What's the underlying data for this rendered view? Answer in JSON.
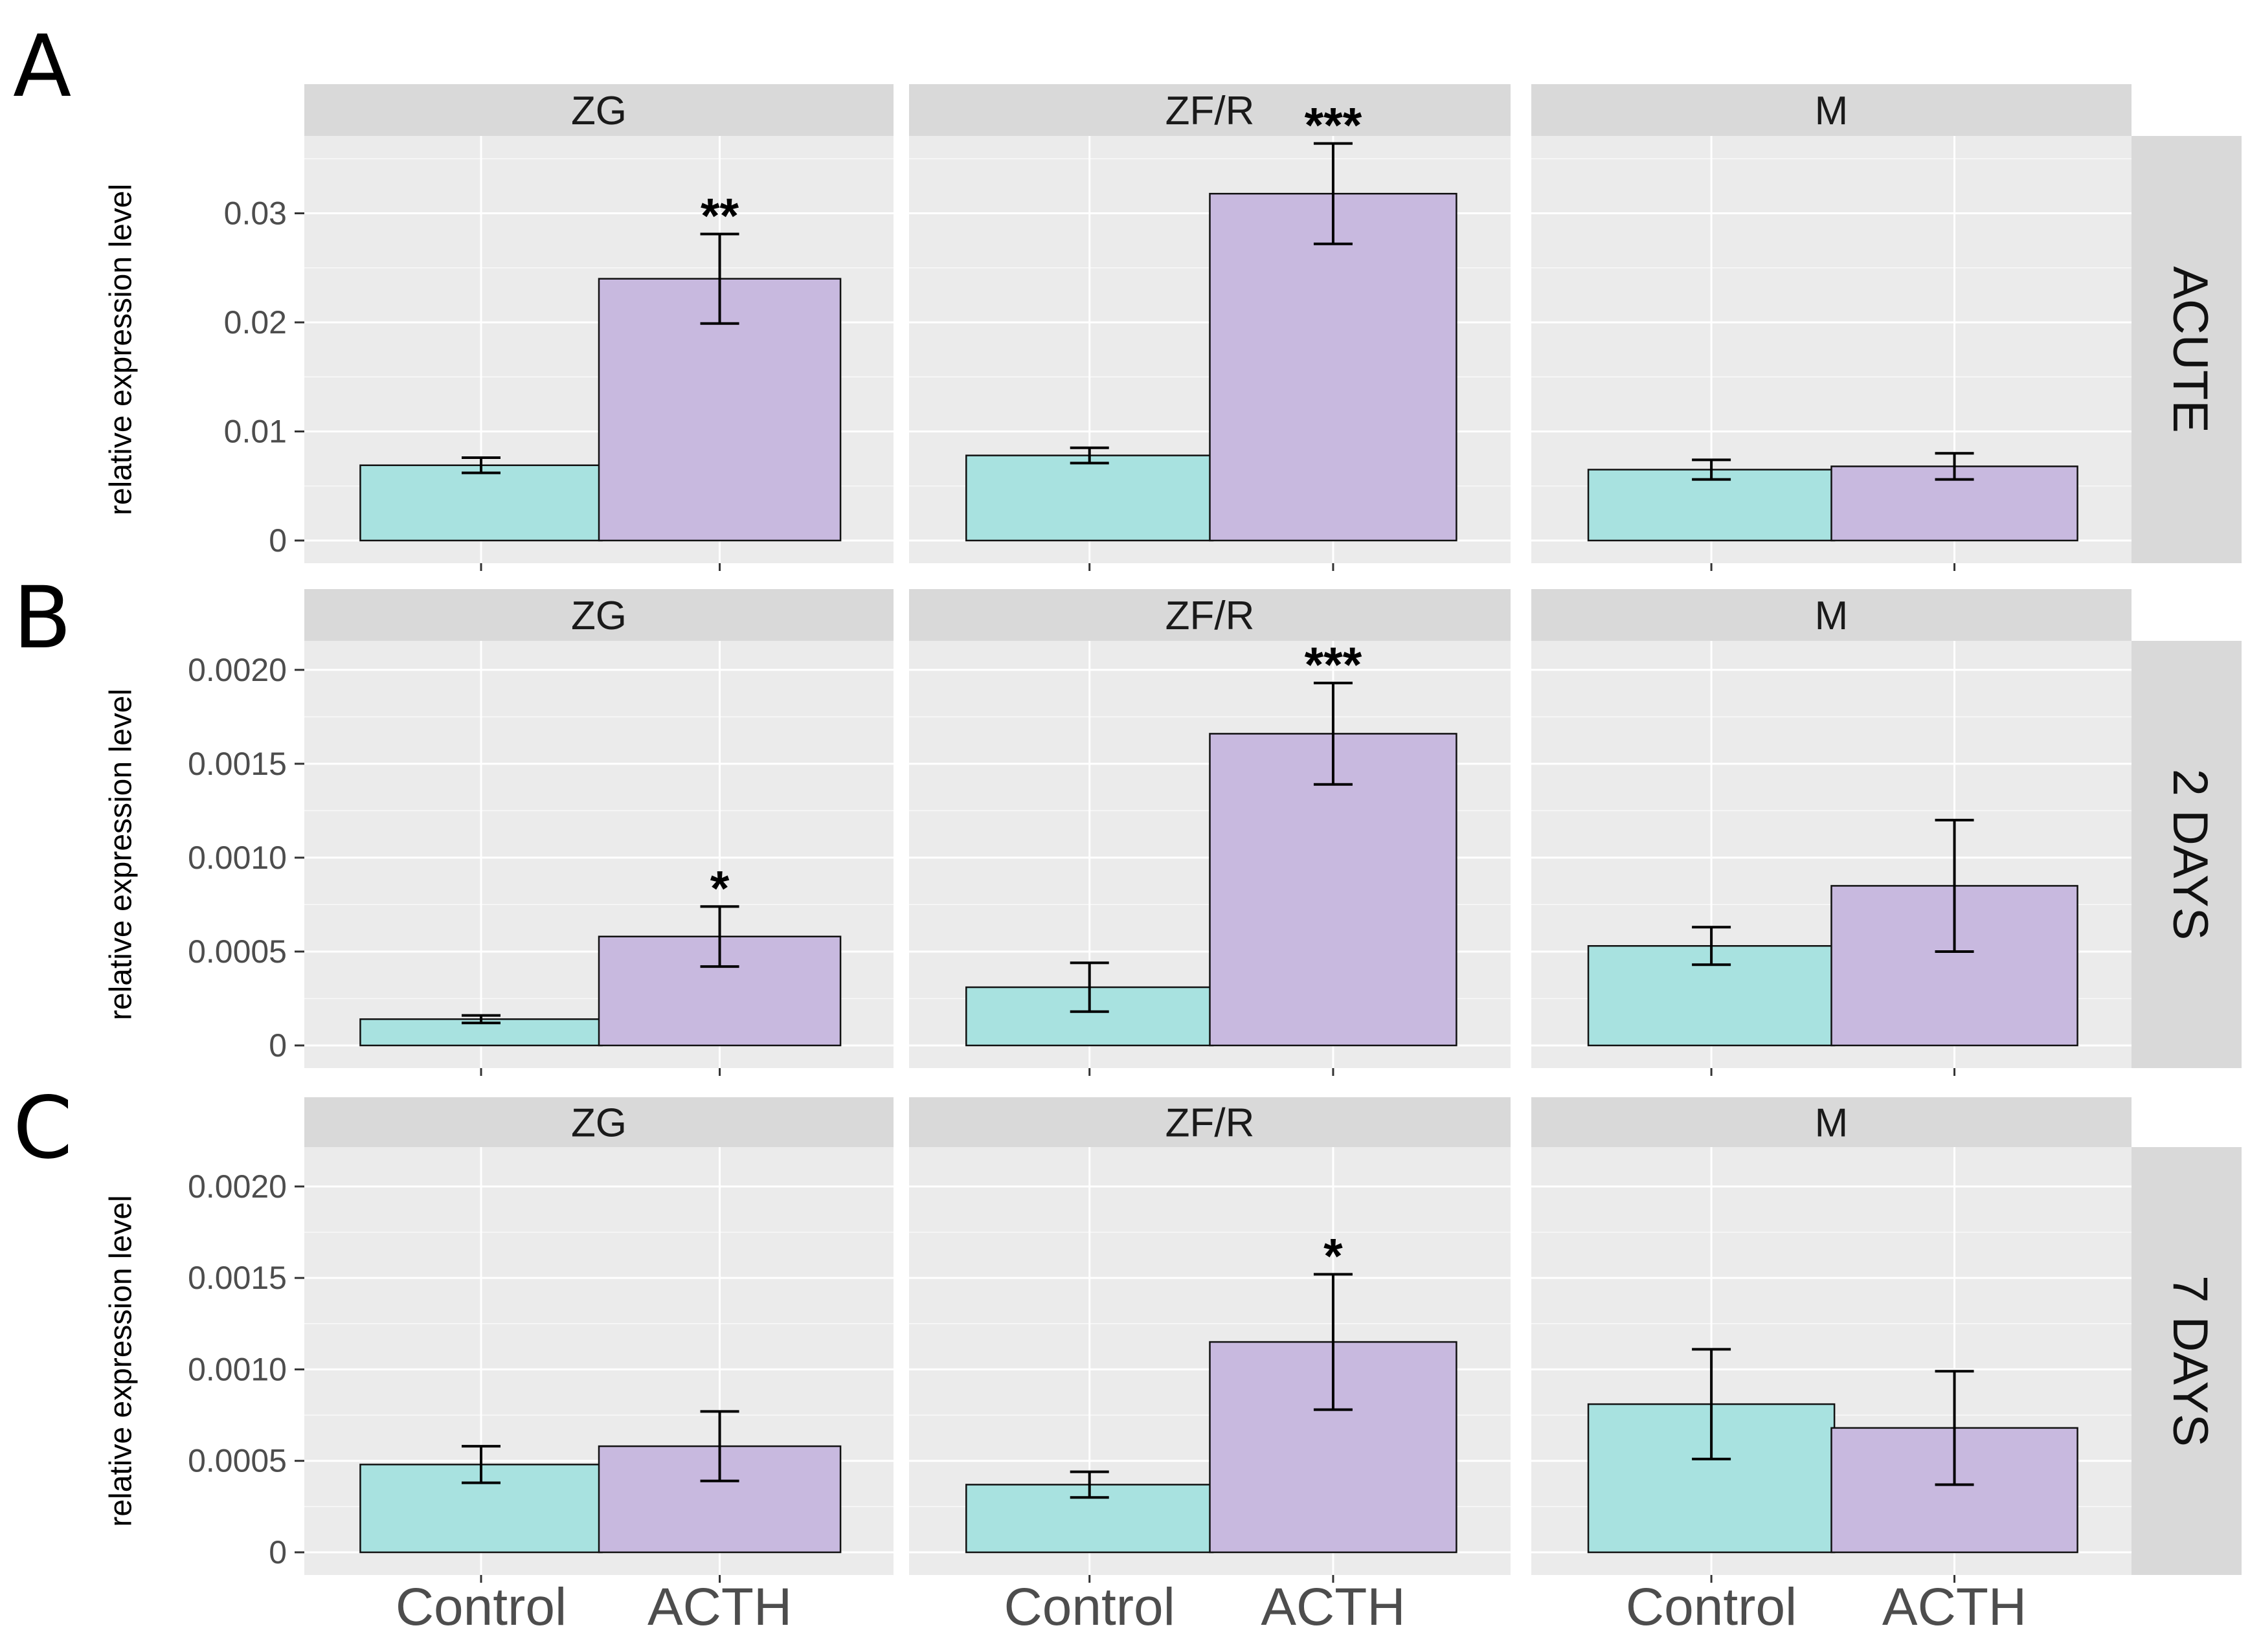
{
  "chart_data": {
    "type": "bar",
    "ylabel": "relative expression level",
    "categories": [
      "Control",
      "ACTH"
    ],
    "columns": [
      "ZG",
      "ZF/R",
      "M"
    ],
    "colors": {
      "Control": "#a8e2e0",
      "ACTH": "#c8b9df",
      "panel_bg": "#ebebeb",
      "strip_bg": "#d9d9d9",
      "grid": "#ffffff"
    },
    "rows": [
      {
        "letter": "A",
        "label": "ACUTE",
        "ylim": [
          0,
          0.0365
        ],
        "ticks": [
          0,
          0.01,
          0.02,
          0.03
        ],
        "tick_labels": [
          "0",
          "0.01",
          "0.02",
          "0.03"
        ],
        "panels": [
          {
            "title": "ZG",
            "values": [
              0.0069,
              0.024
            ],
            "errors": [
              0.0007,
              0.0041
            ],
            "sig": [
              "",
              "**"
            ]
          },
          {
            "title": "ZF/R",
            "values": [
              0.0078,
              0.0318
            ],
            "errors": [
              0.0007,
              0.0046
            ],
            "sig": [
              "",
              "***"
            ]
          },
          {
            "title": "M",
            "values": [
              0.0065,
              0.0068
            ],
            "errors": [
              0.0009,
              0.0012
            ],
            "sig": [
              "",
              ""
            ]
          }
        ]
      },
      {
        "letter": "B",
        "label": "2 DAYS",
        "ylim": [
          0,
          0.00212
        ],
        "ticks": [
          0,
          0.0005,
          0.001,
          0.0015,
          0.002
        ],
        "tick_labels": [
          "0",
          "0.0005",
          "0.0010",
          "0.0015",
          "0.0020"
        ],
        "panels": [
          {
            "title": "ZG",
            "values": [
              0.00014,
              0.00058
            ],
            "errors": [
              2e-05,
              0.00016
            ],
            "sig": [
              "",
              "*"
            ]
          },
          {
            "title": "ZF/R",
            "values": [
              0.00031,
              0.00166
            ],
            "errors": [
              0.00013,
              0.00027
            ],
            "sig": [
              "",
              "***"
            ]
          },
          {
            "title": "M",
            "values": [
              0.00053,
              0.00085
            ],
            "errors": [
              0.0001,
              0.00035
            ],
            "sig": [
              "",
              ""
            ]
          }
        ]
      },
      {
        "letter": "C",
        "label": "7 DAYS",
        "ylim": [
          0,
          0.00218
        ],
        "ticks": [
          0,
          0.0005,
          0.001,
          0.0015,
          0.002
        ],
        "tick_labels": [
          "0",
          "0.0005",
          "0.0010",
          "0.0015",
          "0.0020"
        ],
        "panels": [
          {
            "title": "ZG",
            "values": [
              0.00048,
              0.00058
            ],
            "errors": [
              0.0001,
              0.00019
            ],
            "sig": [
              "",
              ""
            ]
          },
          {
            "title": "ZF/R",
            "values": [
              0.00037,
              0.00115
            ],
            "errors": [
              7e-05,
              0.00037
            ],
            "sig": [
              "",
              "*"
            ]
          },
          {
            "title": "M",
            "values": [
              0.00081,
              0.00068
            ],
            "errors": [
              0.0003,
              0.00031
            ],
            "sig": [
              "",
              ""
            ]
          }
        ]
      }
    ]
  }
}
